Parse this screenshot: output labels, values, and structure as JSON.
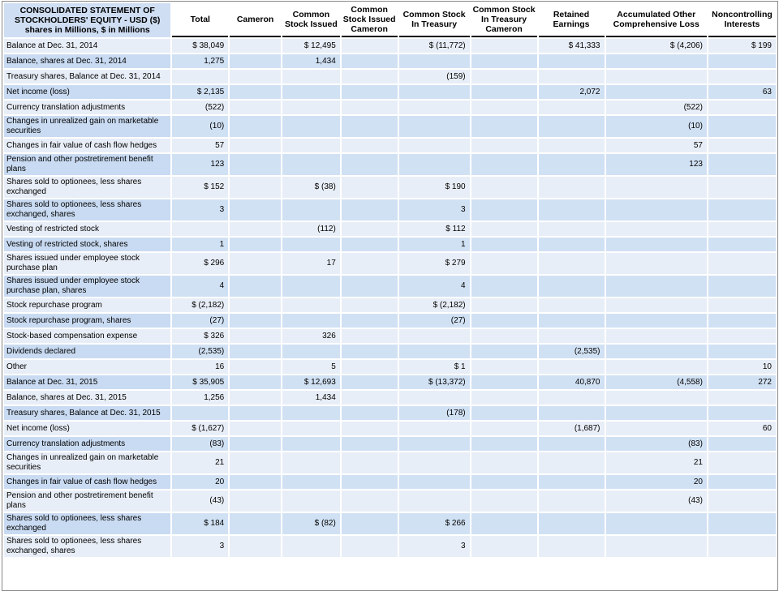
{
  "table": {
    "corner_title": "CONSOLIDATED STATEMENT OF STOCKHOLDERS' EQUITY - USD ($) shares in Millions, $ in Millions",
    "columns": [
      "Total",
      "Cameron",
      "Common Stock Issued",
      "Common Stock Issued Cameron",
      "Common Stock In Treasury",
      "Common Stock In Treasury Cameron",
      "Retained Earnings",
      "Accumulated Other Comprehensive Loss",
      "Noncontrolling Interests"
    ],
    "rows": [
      {
        "label": "Balance at Dec. 31, 2014",
        "cells": [
          "$ 38,049",
          "",
          "$ 12,495",
          "",
          "$ (11,772)",
          "",
          "$ 41,333",
          "$ (4,206)",
          "$ 199"
        ]
      },
      {
        "label": "Balance, shares at Dec. 31, 2014",
        "cells": [
          "1,275",
          "",
          "1,434",
          "",
          "",
          "",
          "",
          "",
          ""
        ]
      },
      {
        "label": "Treasury shares, Balance at Dec. 31, 2014",
        "cells": [
          "",
          "",
          "",
          "",
          "(159)",
          "",
          "",
          "",
          ""
        ]
      },
      {
        "label": "Net income (loss)",
        "cells": [
          "$ 2,135",
          "",
          "",
          "",
          "",
          "",
          "2,072",
          "",
          "63"
        ]
      },
      {
        "label": "Currency translation adjustments",
        "cells": [
          "(522)",
          "",
          "",
          "",
          "",
          "",
          "",
          "(522)",
          ""
        ]
      },
      {
        "label": "Changes in unrealized gain on marketable securities",
        "cells": [
          "(10)",
          "",
          "",
          "",
          "",
          "",
          "",
          "(10)",
          ""
        ]
      },
      {
        "label": "Changes in fair value of cash flow hedges",
        "cells": [
          "57",
          "",
          "",
          "",
          "",
          "",
          "",
          "57",
          ""
        ]
      },
      {
        "label": "Pension and other postretirement benefit plans",
        "cells": [
          "123",
          "",
          "",
          "",
          "",
          "",
          "",
          "123",
          ""
        ]
      },
      {
        "label": "Shares sold to optionees, less shares exchanged",
        "cells": [
          "$ 152",
          "",
          "$ (38)",
          "",
          "$ 190",
          "",
          "",
          "",
          ""
        ]
      },
      {
        "label": "Shares sold to optionees, less shares exchanged, shares",
        "cells": [
          "3",
          "",
          "",
          "",
          "3",
          "",
          "",
          "",
          ""
        ]
      },
      {
        "label": "Vesting of restricted stock",
        "cells": [
          "",
          "",
          "(112)",
          "",
          "$ 112",
          "",
          "",
          "",
          ""
        ]
      },
      {
        "label": "Vesting of restricted stock, shares",
        "cells": [
          "1",
          "",
          "",
          "",
          "1",
          "",
          "",
          "",
          ""
        ]
      },
      {
        "label": "Shares issued under employee stock purchase plan",
        "cells": [
          "$ 296",
          "",
          "17",
          "",
          "$ 279",
          "",
          "",
          "",
          ""
        ]
      },
      {
        "label": "Shares issued under employee stock purchase plan, shares",
        "cells": [
          "4",
          "",
          "",
          "",
          "4",
          "",
          "",
          "",
          ""
        ]
      },
      {
        "label": "Stock repurchase program",
        "cells": [
          "$ (2,182)",
          "",
          "",
          "",
          "$ (2,182)",
          "",
          "",
          "",
          ""
        ]
      },
      {
        "label": "Stock repurchase program, shares",
        "cells": [
          "(27)",
          "",
          "",
          "",
          "(27)",
          "",
          "",
          "",
          ""
        ]
      },
      {
        "label": "Stock-based compensation expense",
        "cells": [
          "$ 326",
          "",
          "326",
          "",
          "",
          "",
          "",
          "",
          ""
        ]
      },
      {
        "label": "Dividends declared",
        "cells": [
          "(2,535)",
          "",
          "",
          "",
          "",
          "",
          "(2,535)",
          "",
          ""
        ]
      },
      {
        "label": "Other",
        "cells": [
          "16",
          "",
          "5",
          "",
          "$ 1",
          "",
          "",
          "",
          "10"
        ]
      },
      {
        "label": "Balance at Dec. 31, 2015",
        "cells": [
          "$ 35,905",
          "",
          "$ 12,693",
          "",
          "$ (13,372)",
          "",
          "40,870",
          "(4,558)",
          "272"
        ]
      },
      {
        "label": "Balance, shares at Dec. 31, 2015",
        "cells": [
          "1,256",
          "",
          "1,434",
          "",
          "",
          "",
          "",
          "",
          ""
        ]
      },
      {
        "label": "Treasury shares, Balance at Dec. 31, 2015",
        "cells": [
          "",
          "",
          "",
          "",
          "(178)",
          "",
          "",
          "",
          ""
        ]
      },
      {
        "label": "Net income (loss)",
        "cells": [
          "$ (1,627)",
          "",
          "",
          "",
          "",
          "",
          "(1,687)",
          "",
          "60"
        ]
      },
      {
        "label": "Currency translation adjustments",
        "cells": [
          "(83)",
          "",
          "",
          "",
          "",
          "",
          "",
          "(83)",
          ""
        ]
      },
      {
        "label": "Changes in unrealized gain on marketable securities",
        "cells": [
          "21",
          "",
          "",
          "",
          "",
          "",
          "",
          "21",
          ""
        ]
      },
      {
        "label": "Changes in fair value of cash flow hedges",
        "cells": [
          "20",
          "",
          "",
          "",
          "",
          "",
          "",
          "20",
          ""
        ]
      },
      {
        "label": "Pension and other postretirement benefit plans",
        "cells": [
          "(43)",
          "",
          "",
          "",
          "",
          "",
          "",
          "(43)",
          ""
        ]
      },
      {
        "label": "Shares sold to optionees, less shares exchanged",
        "cells": [
          "$ 184",
          "",
          "$ (82)",
          "",
          "$ 266",
          "",
          "",
          "",
          ""
        ]
      },
      {
        "label": "Shares sold to optionees, less shares exchanged, shares",
        "cells": [
          "3",
          "",
          "",
          "",
          "3",
          "",
          "",
          "",
          ""
        ]
      }
    ]
  },
  "colors": {
    "header_bg": "#cfdef3",
    "row_light": "#e8eef7",
    "row_dark": "#d1e1f4"
  }
}
